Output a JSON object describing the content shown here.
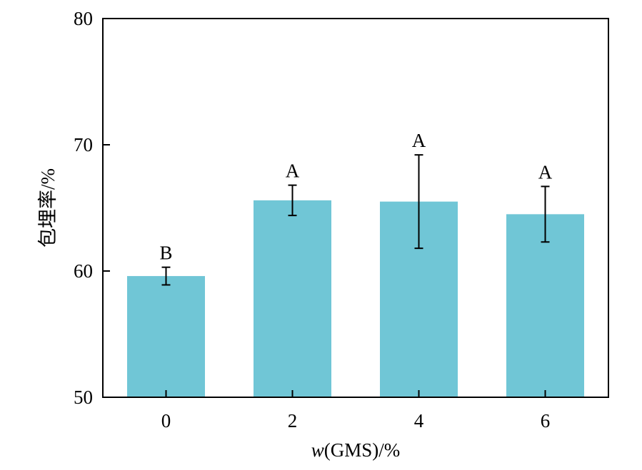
{
  "chart_data": {
    "type": "bar",
    "categories": [
      "0",
      "2",
      "4",
      "6"
    ],
    "values": [
      59.6,
      65.6,
      65.5,
      64.5
    ],
    "errors": [
      0.7,
      1.2,
      3.7,
      2.2
    ],
    "significance": [
      "B",
      "A",
      "A",
      "A"
    ],
    "ylim": [
      50,
      80
    ],
    "yticks": [
      "50",
      "60",
      "70",
      "80"
    ],
    "xlabel_prefix": "w",
    "xlabel_rest": "(GMS)/%",
    "ylabel": "包埋率/%",
    "bar_color": "#70c6d6",
    "grid": false,
    "legend": "none"
  }
}
